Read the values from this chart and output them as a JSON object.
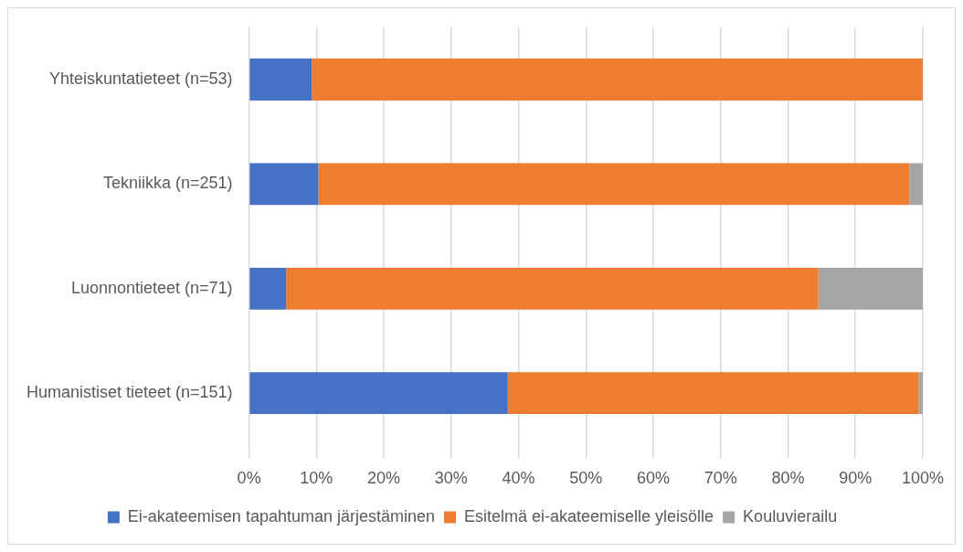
{
  "chart_data": {
    "type": "bar",
    "orientation": "horizontal",
    "stacked": true,
    "categories": [
      "Yhteiskuntatieteet (n=53)",
      "Tekniikka (n=251)",
      "Luonnontieteet (n=71)",
      "Humanistiset tieteet (n=151)"
    ],
    "series": [
      {
        "name": "Ei-akateemisen tapahtuman järjestäminen",
        "color": "#4472c4",
        "values": [
          9.3,
          10.3,
          5.5,
          38.4
        ]
      },
      {
        "name": "Esitelmä ei-akateemiselle yleisölle",
        "color": "#ed7d31",
        "values": [
          90.7,
          87.7,
          79.0,
          61.0
        ]
      },
      {
        "name": "Kouluvierailu",
        "color": "#a5a5a5",
        "values": [
          0,
          2.0,
          15.5,
          0.6
        ]
      }
    ],
    "xlim": [
      0,
      100
    ],
    "xticks": [
      {
        "value": 0,
        "label": "0%"
      },
      {
        "value": 10,
        "label": "10%"
      },
      {
        "value": 20,
        "label": "20%"
      },
      {
        "value": 30,
        "label": "30%"
      },
      {
        "value": 40,
        "label": "40%"
      },
      {
        "value": 50,
        "label": "50%"
      },
      {
        "value": 60,
        "label": "60%"
      },
      {
        "value": 70,
        "label": "70%"
      },
      {
        "value": 80,
        "label": "80%"
      },
      {
        "value": 90,
        "label": "90%"
      },
      {
        "value": 100,
        "label": "100%"
      }
    ],
    "grid": "x",
    "legend": "bottom"
  }
}
